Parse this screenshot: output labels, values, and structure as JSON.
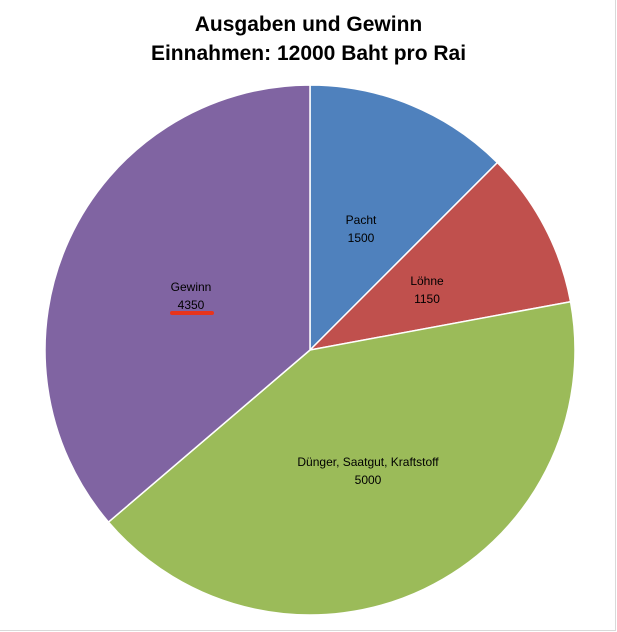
{
  "chart_data": {
    "type": "pie",
    "title": "Ausgaben und Gewinn",
    "subtitle": "Einnahmen: 12000 Baht pro Rai",
    "slices": [
      {
        "label": "Pacht",
        "value": 1500,
        "color": "#4f81bd"
      },
      {
        "label": "Löhne",
        "value": 1150,
        "color": "#c0504d"
      },
      {
        "label": "Dünger, Saatgut, Kraftstoff",
        "value": 5000,
        "color": "#9bbb59"
      },
      {
        "label": "Gewinn",
        "value": 4350,
        "color": "#8064a2"
      }
    ],
    "start_angle": "12 o'clock",
    "direction": "clockwise",
    "data_labels": "inside",
    "legend": "none",
    "annotation": {
      "type": "underline",
      "target": "Gewinn value",
      "color": "#e8341c"
    }
  }
}
